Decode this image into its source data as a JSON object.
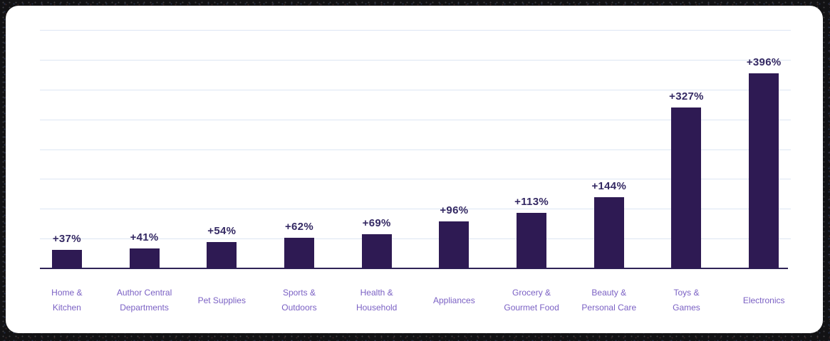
{
  "chart_data": {
    "type": "bar",
    "title": "",
    "xlabel": "",
    "ylabel": "",
    "categories": [
      "Home & Kitchen",
      "Author Central Departments",
      "Pet Supplies",
      "Sports & Outdoors",
      "Health & Household",
      "Appliances",
      "Grocery & Gourmet Food",
      "Beauty & Personal Care",
      "Toys & Games",
      "Electronics"
    ],
    "category_label_lines": [
      [
        "Home &",
        "Kitchen"
      ],
      [
        "Author Central",
        "Departments"
      ],
      [
        "Pet Supplies"
      ],
      [
        "Sports &",
        "Outdoors"
      ],
      [
        "Health &",
        "Household"
      ],
      [
        "Appliances"
      ],
      [
        "Grocery &",
        "Gourmet Food"
      ],
      [
        "Beauty &",
        "Personal Care"
      ],
      [
        "Toys &",
        "Games"
      ],
      [
        "Electronics"
      ]
    ],
    "values": [
      37,
      41,
      54,
      62,
      69,
      96,
      113,
      144,
      327,
      396
    ],
    "value_labels": [
      "+37%",
      "+41%",
      "+54%",
      "+62%",
      "+69%",
      "+96%",
      "+113%",
      "+144%",
      "+327%",
      "+396%"
    ],
    "unit": "%",
    "ylim": [
      0,
      484
    ],
    "gridline_divisions": 8,
    "grid": "horizontal",
    "legend": "none",
    "colors": {
      "bar": "#2e1a53",
      "value_label": "#342963",
      "category_label": "#7b61c4",
      "gridline": "#dde6f3",
      "axis_line": "#2e2356",
      "card_background": "#ffffff"
    }
  }
}
